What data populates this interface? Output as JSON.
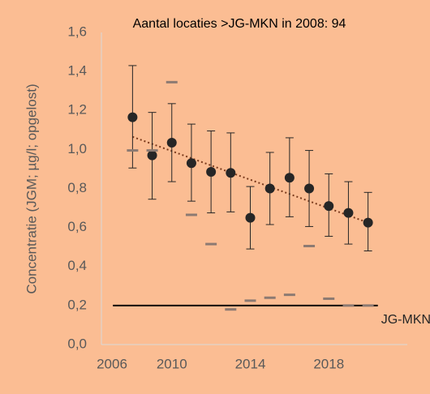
{
  "chart_data": {
    "type": "scatter",
    "title": "Aantal locaties >JG-MKN in 2008: 94",
    "y_label": "Concentratie (JGM; µg/l; opgelost)",
    "x": [
      2008,
      2009,
      2010,
      2011,
      2012,
      2013,
      2014,
      2015,
      2016,
      2017,
      2018,
      2019,
      2020
    ],
    "series": [
      {
        "color": "#262626",
        "marker": "circle",
        "values": [
          1.165,
          0.97,
          1.035,
          0.93,
          0.885,
          0.88,
          0.65,
          0.8,
          0.855,
          0.8,
          0.71,
          0.675,
          0.625
        ],
        "error_lower": [
          0.905,
          0.745,
          0.835,
          0.735,
          0.675,
          0.68,
          0.49,
          0.615,
          0.655,
          0.605,
          0.555,
          0.515,
          0.48
        ],
        "error_upper": [
          1.43,
          1.19,
          1.235,
          1.13,
          1.095,
          1.085,
          0.81,
          0.985,
          1.06,
          0.995,
          0.875,
          0.835,
          0.78
        ]
      },
      {
        "color": "#8c7a72",
        "marker": "dash",
        "values": [
          0.995,
          0.995,
          1.345,
          0.665,
          0.515,
          0.18,
          0.225,
          0.24,
          0.255,
          0.505,
          0.235,
          0.2,
          0.2
        ]
      }
    ],
    "trendline": {
      "color": "#7a3a1c",
      "x": [
        2008,
        2020
      ],
      "values": [
        1.065,
        0.625
      ]
    },
    "reference_line": {
      "label": "JG-MKN",
      "value": 0.2,
      "x": [
        2007,
        2020.5
      ],
      "color": "#000000"
    },
    "xlim": [
      2006,
      2022
    ],
    "xticks": [
      2006,
      2010,
      2014,
      2018
    ],
    "ylim": [
      0,
      1.6
    ],
    "yticks": [
      {
        "value": 0,
        "label": "0,0"
      },
      {
        "value": 0.2,
        "label": "0,2"
      },
      {
        "value": 0.4,
        "label": "0,4"
      },
      {
        "value": 0.6,
        "label": "0,6"
      },
      {
        "value": 0.8,
        "label": "0,8"
      },
      {
        "value": 1.0,
        "label": "1,0"
      },
      {
        "value": 1.2,
        "label": "1,2"
      },
      {
        "value": 1.4,
        "label": "1,4"
      },
      {
        "value": 1.6,
        "label": "1,6"
      }
    ]
  }
}
